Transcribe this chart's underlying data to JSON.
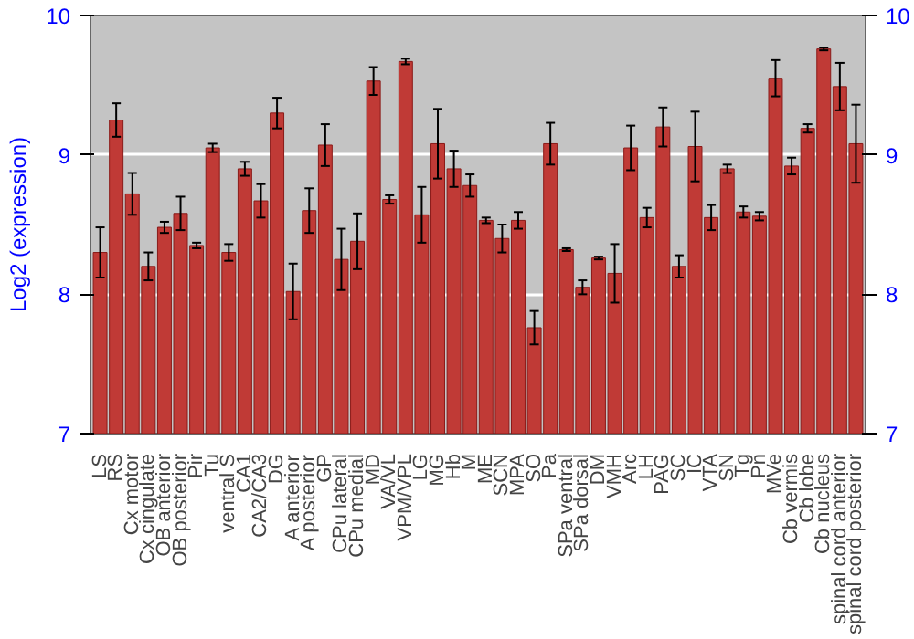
{
  "chart_data": {
    "type": "bar",
    "ylabel": "Log2 (expression)",
    "categories": [
      "LS",
      "RS",
      "Cx motor",
      "Cx cingulate",
      "OB anterior",
      "OB posterior",
      "Pir",
      "Tu",
      "ventral S",
      "CA1",
      "CA2/CA3",
      "DG",
      "A anterior",
      "A posterior",
      "GP",
      "CPu lateral",
      "CPu medial",
      "MD",
      "VA/VL",
      "VPM/VPL",
      "LG",
      "MG",
      "Hb",
      "M",
      "ME",
      "SCN",
      "MPA",
      "SO",
      "Pa",
      "SPa ventral",
      "SPa dorsal",
      "DM",
      "VMH",
      "Arc",
      "LH",
      "PAG",
      "SC",
      "IC",
      "VTA",
      "SN",
      "Tg",
      "Pn",
      "MVe",
      "Cb vermis",
      "Cb lobe",
      "Cb nucleus",
      "spinal cord anterior",
      "spinal cord posterior"
    ],
    "values": [
      8.3,
      9.25,
      8.72,
      8.2,
      8.48,
      8.58,
      8.35,
      9.05,
      8.3,
      8.9,
      8.67,
      9.3,
      8.02,
      8.6,
      9.07,
      8.25,
      8.38,
      9.53,
      8.68,
      9.67,
      8.57,
      9.08,
      8.9,
      8.78,
      8.53,
      8.4,
      8.53,
      7.76,
      9.08,
      8.32,
      8.05,
      8.26,
      8.15,
      9.05,
      8.55,
      9.2,
      8.2,
      9.06,
      8.55,
      8.9,
      8.59,
      8.56,
      9.55,
      8.92,
      9.19,
      9.76,
      9.49,
      9.08
    ],
    "errors": [
      0.18,
      0.12,
      0.15,
      0.1,
      0.04,
      0.12,
      0.02,
      0.03,
      0.06,
      0.05,
      0.12,
      0.11,
      0.2,
      0.16,
      0.15,
      0.22,
      0.2,
      0.1,
      0.03,
      0.02,
      0.2,
      0.25,
      0.13,
      0.08,
      0.02,
      0.1,
      0.06,
      0.12,
      0.15,
      0.01,
      0.05,
      0.01,
      0.21,
      0.16,
      0.07,
      0.14,
      0.08,
      0.25,
      0.09,
      0.03,
      0.04,
      0.03,
      0.13,
      0.06,
      0.03,
      0.01,
      0.17,
      0.28
    ],
    "color": "#c03a36",
    "ylim": [
      7,
      10
    ],
    "yticks": [
      7,
      8,
      9,
      10
    ],
    "y2lim": [
      7,
      10
    ],
    "y2ticks": [
      7,
      8,
      9,
      10
    ],
    "grid": "y"
  }
}
